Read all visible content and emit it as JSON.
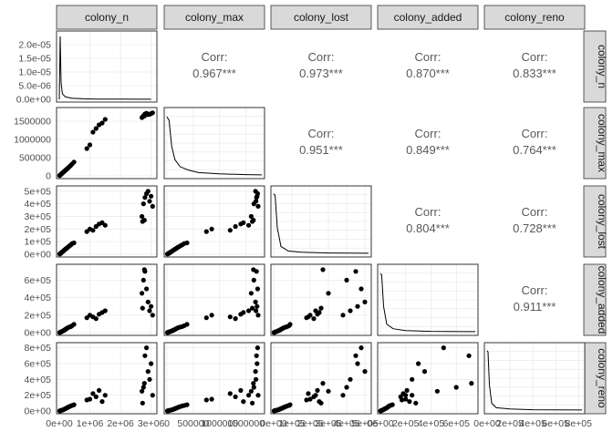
{
  "chart_data": {
    "type": "scatter",
    "variables": [
      "colony_n",
      "colony_max",
      "colony_lost",
      "colony_added",
      "colony_reno"
    ],
    "strip_color": "#d9d9d9",
    "panel_border_color": "#333333",
    "grid_color": "#ebebeb",
    "point_color": "#000000",
    "correlations": [
      {
        "row": "colony_max",
        "col": "colony_n",
        "label": "Corr:",
        "value": "0.967***"
      },
      {
        "row": "colony_lost",
        "col": "colony_n",
        "label": "Corr:",
        "value": "0.973***"
      },
      {
        "row": "colony_added",
        "col": "colony_n",
        "label": "Corr:",
        "value": "0.870***"
      },
      {
        "row": "colony_reno",
        "col": "colony_n",
        "label": "Corr:",
        "value": "0.833***"
      },
      {
        "row": "colony_lost",
        "col": "colony_max",
        "label": "Corr:",
        "value": "0.951***"
      },
      {
        "row": "colony_added",
        "col": "colony_max",
        "label": "Corr:",
        "value": "0.849***"
      },
      {
        "row": "colony_reno",
        "col": "colony_max",
        "label": "Corr:",
        "value": "0.764***"
      },
      {
        "row": "colony_added",
        "col": "colony_lost",
        "label": "Corr:",
        "value": "0.804***"
      },
      {
        "row": "colony_reno",
        "col": "colony_lost",
        "label": "Corr:",
        "value": "0.728***"
      },
      {
        "row": "colony_reno",
        "col": "colony_added",
        "label": "Corr:",
        "value": "0.911***"
      }
    ],
    "axes": {
      "colony_n": {
        "x_range": [
          0,
          3100000
        ],
        "x_ticks": [
          0,
          1000000,
          2000000,
          3000000
        ],
        "x_tick_labels": [
          "0e+00",
          "1e+06",
          "2e+06",
          "3e+06"
        ],
        "density_range": [
          0,
          2.4e-05
        ],
        "density_ticks": [
          0,
          5e-06,
          1e-05,
          1.5e-05,
          2e-05
        ],
        "density_tick_labels": [
          "0.0e+00",
          "5.0e-06",
          "1.0e-05",
          "1.5e-05",
          "2.0e-05"
        ]
      },
      "colony_max": {
        "range": [
          0,
          1800000
        ],
        "ticks": [
          0,
          500000,
          1000000,
          1500000
        ],
        "y_tick_labels": [
          "0",
          "500000",
          "1000000",
          "1500000"
        ],
        "x_tick_labels": [
          "0",
          "500000",
          "1000000",
          "1500000"
        ]
      },
      "colony_lost": {
        "range": [
          0,
          520000
        ],
        "ticks": [
          0,
          100000,
          200000,
          300000,
          400000,
          500000
        ],
        "y_tick_labels": [
          "0e+00",
          "1e+05",
          "2e+05",
          "3e+05",
          "4e+05",
          "5e+05"
        ],
        "x_tick_labels": [
          "0e+00",
          "1e+05",
          "2e+05",
          "3e+05",
          "4e+05",
          "5e+05"
        ]
      },
      "colony_added": {
        "range": [
          0,
          750000
        ],
        "ticks": [
          0,
          200000,
          400000,
          600000
        ],
        "y_tick_labels": [
          "0e+00",
          "2e+05",
          "4e+05",
          "6e+05"
        ],
        "x_tick_labels": [
          "0e+00",
          "2e+05",
          "4e+05",
          "6e+05"
        ]
      },
      "colony_reno": {
        "range": [
          0,
          830000
        ],
        "ticks": [
          0,
          200000,
          400000,
          600000,
          800000
        ],
        "y_tick_labels": [
          "0e+00",
          "2e+05",
          "4e+05",
          "6e+05",
          "8e+05"
        ],
        "x_tick_labels": [
          "0e+00",
          "2e+05",
          "4e+05",
          "6e+05",
          "8e+05"
        ]
      }
    },
    "densities": {
      "colony_n": [
        [
          0,
          0
        ],
        [
          30000,
          2.3e-05
        ],
        [
          60000,
          6e-06
        ],
        [
          100000,
          2e-06
        ],
        [
          200000,
          9e-07
        ],
        [
          400000,
          4e-07
        ],
        [
          800000,
          2e-07
        ],
        [
          1200000,
          1e-07
        ],
        [
          2000000,
          5e-08
        ],
        [
          3000000,
          3e-08
        ]
      ],
      "colony_max": [
        [
          0,
          0.9
        ],
        [
          40000,
          0.85
        ],
        [
          90000,
          0.45
        ],
        [
          150000,
          0.25
        ],
        [
          250000,
          0.14
        ],
        [
          400000,
          0.09
        ],
        [
          600000,
          0.05
        ],
        [
          1000000,
          0.03
        ],
        [
          1500000,
          0.02
        ],
        [
          1800000,
          0.015
        ]
      ],
      "colony_lost": [
        [
          0,
          0.92
        ],
        [
          8000,
          0.9
        ],
        [
          20000,
          0.4
        ],
        [
          40000,
          0.12
        ],
        [
          80000,
          0.05
        ],
        [
          150000,
          0.03
        ],
        [
          300000,
          0.02
        ],
        [
          520000,
          0.015
        ]
      ],
      "colony_added": [
        [
          0,
          0.9
        ],
        [
          10000,
          0.88
        ],
        [
          25000,
          0.4
        ],
        [
          50000,
          0.13
        ],
        [
          100000,
          0.06
        ],
        [
          200000,
          0.03
        ],
        [
          400000,
          0.02
        ],
        [
          750000,
          0.015
        ]
      ],
      "colony_reno": [
        [
          0,
          0.92
        ],
        [
          8000,
          0.9
        ],
        [
          20000,
          0.4
        ],
        [
          40000,
          0.12
        ],
        [
          80000,
          0.05
        ],
        [
          200000,
          0.03
        ],
        [
          400000,
          0.02
        ],
        [
          830000,
          0.015
        ]
      ]
    },
    "observations": [
      [
        12000,
        8000,
        2000,
        1500,
        800
      ],
      [
        20000,
        15000,
        3000,
        2500,
        1500
      ],
      [
        30000,
        22000,
        5000,
        4000,
        3000
      ],
      [
        45000,
        35000,
        8000,
        7000,
        5000
      ],
      [
        60000,
        45000,
        10000,
        9000,
        7000
      ],
      [
        75000,
        60000,
        14000,
        12000,
        9000
      ],
      [
        90000,
        70000,
        18000,
        15000,
        11000
      ],
      [
        110000,
        85000,
        22000,
        18000,
        14000
      ],
      [
        130000,
        100000,
        25000,
        22000,
        16000
      ],
      [
        150000,
        115000,
        30000,
        26000,
        20000
      ],
      [
        170000,
        130000,
        34000,
        30000,
        24000
      ],
      [
        190000,
        145000,
        38000,
        35000,
        28000
      ],
      [
        210000,
        160000,
        42000,
        40000,
        32000
      ],
      [
        230000,
        175000,
        46000,
        45000,
        36000
      ],
      [
        250000,
        190000,
        50000,
        50000,
        40000
      ],
      [
        280000,
        210000,
        56000,
        55000,
        46000
      ],
      [
        300000,
        230000,
        60000,
        60000,
        52000
      ],
      [
        340000,
        260000,
        68000,
        65000,
        58000
      ],
      [
        380000,
        290000,
        75000,
        70000,
        64000
      ],
      [
        420000,
        330000,
        85000,
        80000,
        70000
      ],
      [
        480000,
        380000,
        90000,
        95000,
        80000
      ],
      [
        900000,
        750000,
        180000,
        170000,
        140000
      ],
      [
        1000000,
        850000,
        200000,
        200000,
        150000
      ],
      [
        1100000,
        1200000,
        190000,
        180000,
        220000
      ],
      [
        1200000,
        1300000,
        220000,
        160000,
        180000
      ],
      [
        1300000,
        1400000,
        240000,
        210000,
        260000
      ],
      [
        1400000,
        1450000,
        250000,
        230000,
        120000
      ],
      [
        1500000,
        1550000,
        230000,
        250000,
        200000
      ],
      [
        2700000,
        1600000,
        300000,
        450000,
        250000
      ],
      [
        2750000,
        1650000,
        400000,
        600000,
        300000
      ],
      [
        2800000,
        1700000,
        450000,
        700000,
        700000
      ],
      [
        2850000,
        1720000,
        480000,
        500000,
        800000
      ],
      [
        2900000,
        1680000,
        500000,
        350000,
        500000
      ],
      [
        2950000,
        1690000,
        420000,
        250000,
        400000
      ],
      [
        3000000,
        1710000,
        460000,
        300000,
        600000
      ],
      [
        3050000,
        1730000,
        380000,
        200000,
        200000
      ],
      [
        2720000,
        1620000,
        260000,
        280000,
        100000
      ],
      [
        2780000,
        1640000,
        270000,
        720000,
        350000
      ]
    ]
  }
}
